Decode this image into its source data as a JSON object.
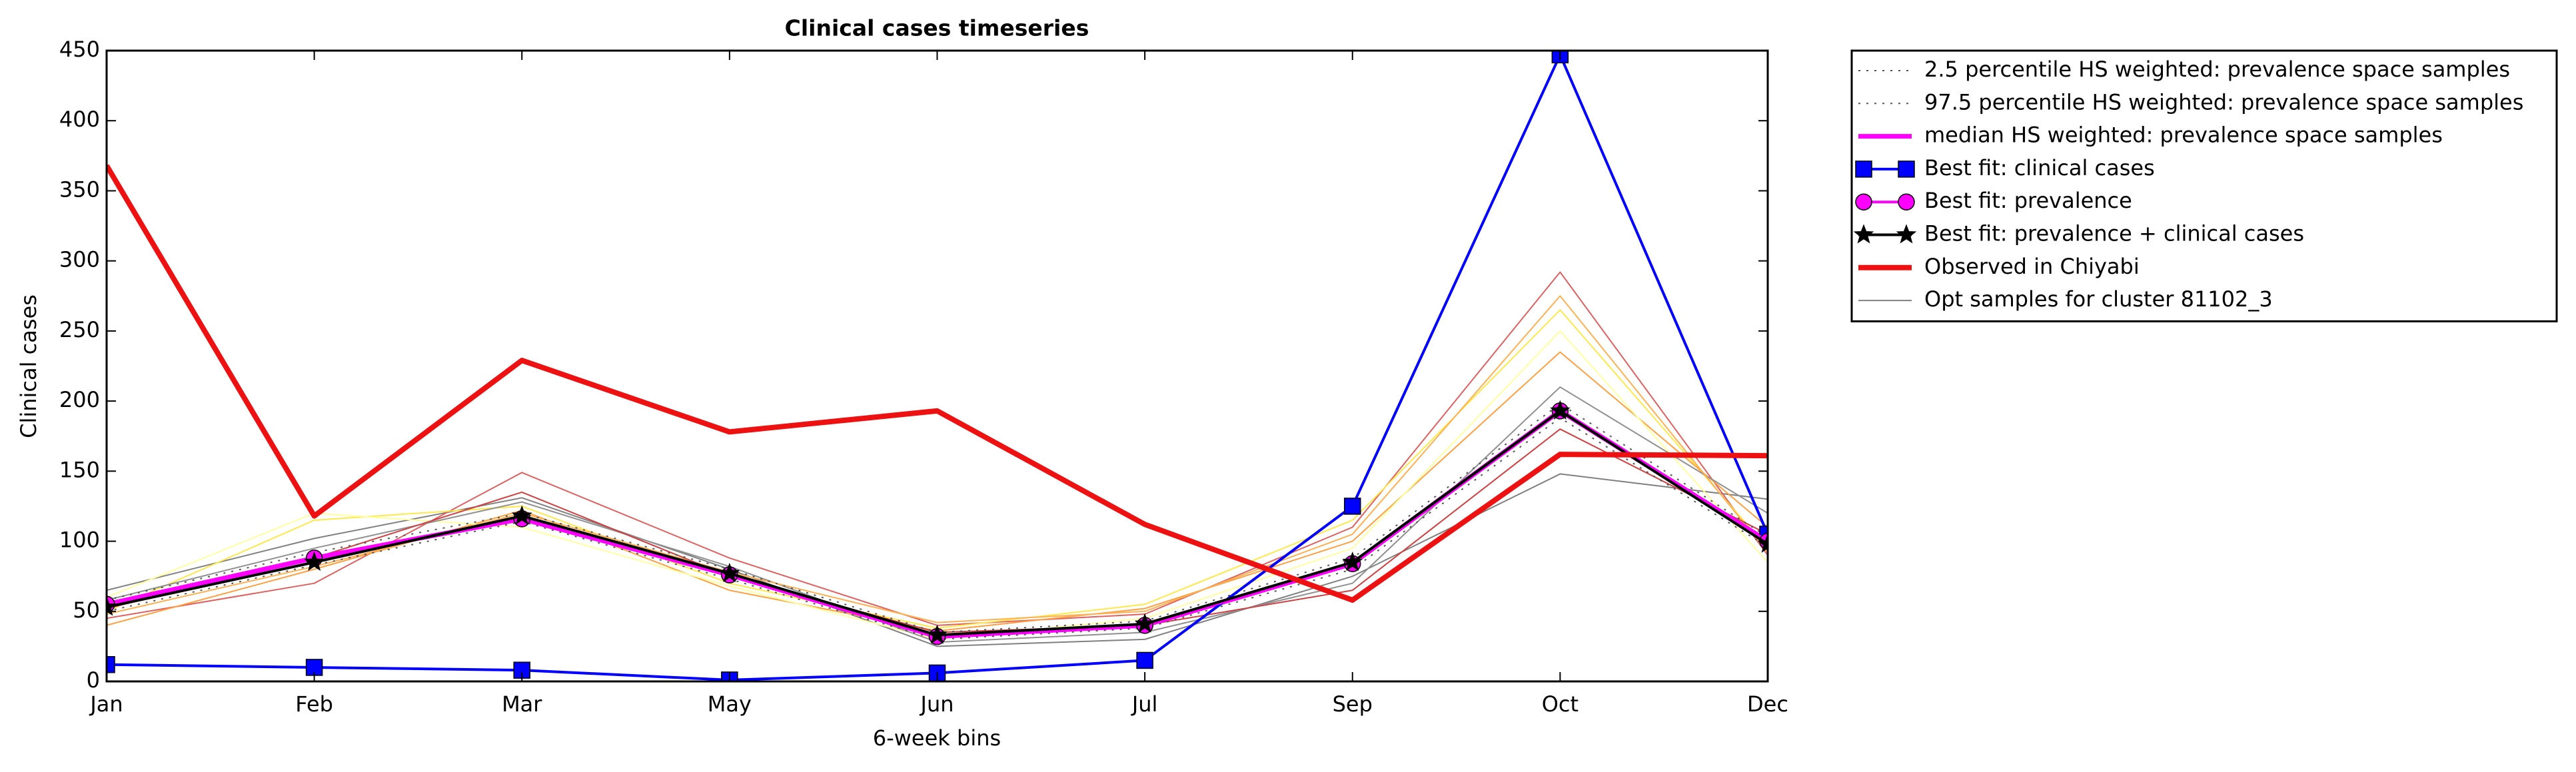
{
  "chart_data": {
    "type": "line",
    "title": "Clinical cases timeseries",
    "xlabel": "6-week bins",
    "ylabel": "Clinical cases",
    "categories": [
      "Jan",
      "Feb",
      "Mar",
      "May",
      "Jun",
      "Jul",
      "Sep",
      "Oct",
      "Dec"
    ],
    "ylim": [
      0,
      450
    ],
    "yticks": [
      0,
      50,
      100,
      150,
      200,
      250,
      300,
      350,
      400,
      450
    ],
    "legend": "outside-upper-right",
    "opt_samples": {
      "name": "Opt samples for cluster 81102_3",
      "color": "#808080",
      "lines": [
        {
          "color": "#808080",
          "values": [
            65,
            102,
            131,
            80,
            25,
            30,
            75,
            148,
            130
          ]
        },
        {
          "color": "#e06060",
          "values": [
            45,
            70,
            149,
            88,
            40,
            48,
            110,
            292,
            90
          ]
        },
        {
          "color": "#ffe84a",
          "values": [
            50,
            115,
            125,
            70,
            38,
            55,
            115,
            265,
            95
          ]
        },
        {
          "color": "#ffa040",
          "values": [
            40,
            80,
            122,
            65,
            36,
            52,
            100,
            235,
            110
          ]
        },
        {
          "color": "#ffffa0",
          "values": [
            60,
            120,
            110,
            68,
            30,
            45,
            95,
            250,
            85
          ]
        },
        {
          "color": "#909090",
          "values": [
            58,
            95,
            128,
            82,
            28,
            35,
            70,
            210,
            120
          ]
        },
        {
          "color": "#ffb050",
          "values": [
            48,
            82,
            120,
            78,
            42,
            50,
            105,
            275,
            92
          ]
        },
        {
          "color": "#d04040",
          "values": [
            52,
            88,
            135,
            75,
            35,
            40,
            65,
            180,
            105
          ]
        }
      ]
    },
    "series": [
      {
        "name": "2.5 percentile HS weighted: prevalence space samples",
        "color": "#555555",
        "linestyle": "dotted",
        "marker": "none",
        "width": 2,
        "values": [
          50,
          83,
          114,
          73,
          30,
          38,
          80,
          188,
          96
        ]
      },
      {
        "name": "97.5 percentile HS weighted: prevalence space samples",
        "color": "#555555",
        "linestyle": "dotted",
        "marker": "none",
        "width": 2,
        "values": [
          58,
          92,
          120,
          80,
          35,
          43,
          88,
          198,
          103
        ]
      },
      {
        "name": "median HS weighted: prevalence space samples",
        "color": "#ff00ff",
        "linestyle": "solid",
        "marker": "none",
        "width": 7,
        "values": [
          55,
          88,
          116,
          76,
          32,
          40,
          84,
          193,
          100
        ]
      },
      {
        "name": "Best fit: clinical cases",
        "color": "#0000ff",
        "linestyle": "solid",
        "marker": "square",
        "width": 4,
        "values": [
          12,
          10,
          8,
          1,
          6,
          15,
          125,
          447,
          105
        ]
      },
      {
        "name": "Best fit: prevalence",
        "color": "#ff00ff",
        "linestyle": "solid",
        "marker": "circle",
        "width": 4,
        "values": [
          55,
          88,
          116,
          76,
          32,
          40,
          84,
          193,
          100
        ]
      },
      {
        "name": "Best fit: prevalence + clinical cases",
        "color": "#000000",
        "linestyle": "solid",
        "marker": "star",
        "width": 4,
        "values": [
          53,
          85,
          118,
          77,
          33,
          41,
          85,
          193,
          98
        ]
      },
      {
        "name": "Observed in Chiyabi",
        "color": "#ee1111",
        "linestyle": "solid",
        "marker": "none",
        "width": 8,
        "values": [
          368,
          118,
          229,
          178,
          193,
          112,
          58,
          162,
          161
        ]
      }
    ]
  }
}
